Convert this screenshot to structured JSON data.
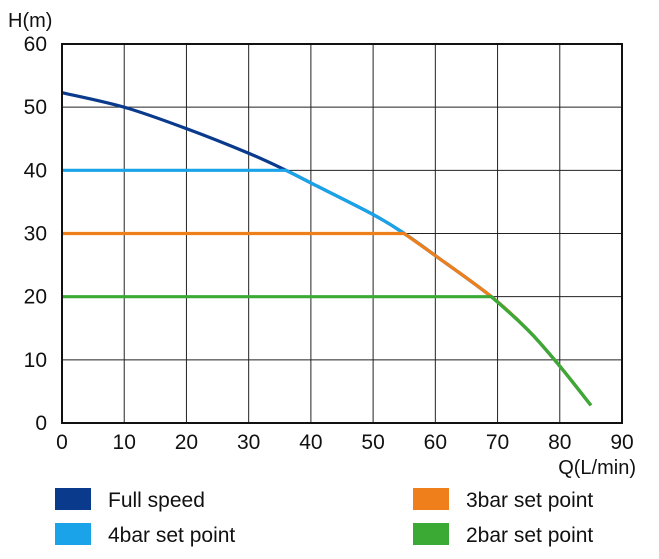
{
  "chart_data": {
    "type": "line",
    "title": "",
    "xlabel": "Q(L/min)",
    "ylabel": "H(m)",
    "xlim": [
      0,
      90
    ],
    "ylim": [
      0,
      60
    ],
    "xticks": [
      0,
      10,
      20,
      30,
      40,
      50,
      60,
      70,
      80,
      90
    ],
    "yticks": [
      0,
      10,
      20,
      30,
      40,
      50,
      60
    ],
    "grid": true,
    "legend_position": "bottom",
    "series": [
      {
        "name": "Full speed",
        "color": "#0a3a8c",
        "points": [
          [
            0,
            52.3
          ],
          [
            10,
            50.0
          ],
          [
            20,
            46.6
          ],
          [
            30,
            42.7
          ],
          [
            36,
            40.0
          ],
          [
            40,
            38.0
          ],
          [
            50,
            33.0
          ],
          [
            55,
            30.0
          ],
          [
            60,
            26.5
          ],
          [
            69,
            20.0
          ],
          [
            75,
            14.6
          ],
          [
            80,
            9.0
          ],
          [
            85,
            2.8
          ]
        ]
      },
      {
        "name": "4bar set point",
        "color": "#1aa3e8",
        "points": [
          [
            0,
            40.0
          ],
          [
            36,
            40.0
          ],
          [
            40,
            38.0
          ],
          [
            50,
            33.0
          ],
          [
            55,
            30.0
          ],
          [
            60,
            26.5
          ],
          [
            69,
            20.0
          ],
          [
            75,
            14.6
          ],
          [
            80,
            9.0
          ],
          [
            85,
            2.8
          ]
        ]
      },
      {
        "name": "3bar set point",
        "color": "#ef7f1a",
        "points": [
          [
            0,
            30.0
          ],
          [
            55,
            30.0
          ],
          [
            60,
            26.5
          ],
          [
            69,
            20.0
          ],
          [
            75,
            14.6
          ],
          [
            80,
            9.0
          ],
          [
            85,
            2.8
          ]
        ]
      },
      {
        "name": "2bar set point",
        "color": "#3aaa35",
        "points": [
          [
            0,
            20.0
          ],
          [
            69,
            20.0
          ],
          [
            75,
            14.6
          ],
          [
            80,
            9.0
          ],
          [
            85,
            2.8
          ]
        ]
      }
    ]
  }
}
